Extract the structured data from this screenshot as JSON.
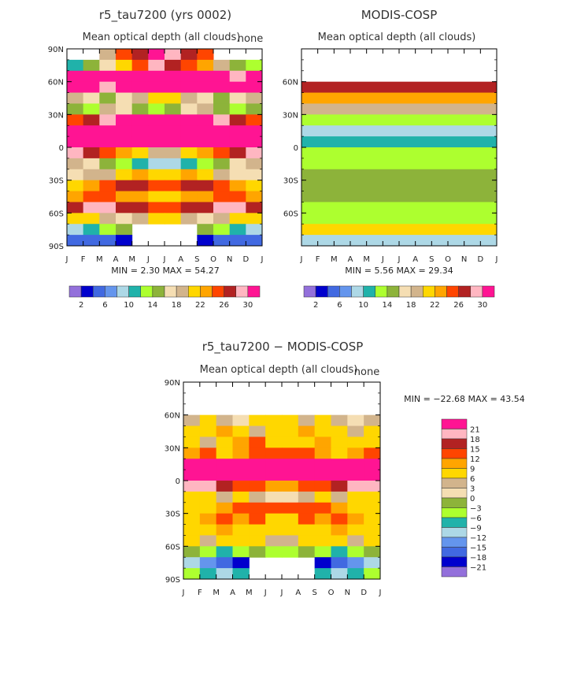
{
  "chart_data": [
    {
      "type": "heatmap",
      "title": "r5_tau7200 (yrs 0002)",
      "subtitle": "Mean optical depth (all clouds)",
      "corner_label": "none",
      "x_ticks": [
        "J",
        "F",
        "M",
        "A",
        "M",
        "J",
        "J",
        "A",
        "S",
        "O",
        "N",
        "D",
        "J"
      ],
      "y_ticks": [
        "90N",
        "60N",
        "30N",
        "0",
        "30S",
        "60S",
        "90S"
      ],
      "y_tick_visible": [
        true,
        true,
        true,
        true,
        true,
        true,
        true
      ],
      "stats_text": "MIN =    2.30  MAX =   54.27",
      "min": 2.3,
      "max": 54.27,
      "legend_labels": [
        "2",
        "6",
        "10",
        "14",
        "18",
        "22",
        "26",
        "30"
      ],
      "legend_colors": [
        "#9370DB",
        "#0000CD",
        "#4169E1",
        "#6495ED",
        "#ADD8E6",
        "#20B2AA",
        "#ADFF2F",
        "#8DB33A",
        "#F5DEB3",
        "#D2B48C",
        "#FFD700",
        "#FFA500",
        "#FF4500",
        "#B22222",
        "#FFB6C1",
        "#FF1493"
      ],
      "latitudes": [
        85,
        75,
        65,
        55,
        45,
        35,
        25,
        15,
        5,
        -5,
        -15,
        -25,
        -35,
        -45,
        -55,
        -65,
        -75,
        -85
      ],
      "months": [
        "Jan",
        "Feb",
        "Mar",
        "Apr",
        "May",
        "Jun",
        "Jul",
        "Aug",
        "Sep",
        "Oct",
        "Nov",
        "Dec"
      ],
      "values": [
        [
          null,
          null,
          18,
          24,
          26,
          30,
          28,
          26,
          24,
          null,
          null,
          null
        ],
        [
          10,
          14,
          16,
          20,
          24,
          28,
          26,
          24,
          22,
          18,
          14,
          12
        ],
        [
          30,
          30,
          32,
          34,
          36,
          36,
          34,
          32,
          30,
          30,
          28,
          30
        ],
        [
          32,
          30,
          28,
          30,
          34,
          36,
          36,
          34,
          32,
          30,
          30,
          32
        ],
        [
          18,
          16,
          14,
          16,
          18,
          20,
          20,
          18,
          16,
          14,
          16,
          18
        ],
        [
          14,
          12,
          18,
          16,
          14,
          12,
          14,
          16,
          18,
          14,
          12,
          14
        ],
        [
          24,
          26,
          28,
          30,
          32,
          34,
          34,
          32,
          30,
          28,
          26,
          24
        ],
        [
          32,
          34,
          36,
          38,
          40,
          42,
          42,
          40,
          38,
          36,
          34,
          32
        ],
        [
          34,
          36,
          38,
          40,
          44,
          46,
          46,
          44,
          40,
          38,
          36,
          34
        ],
        [
          28,
          26,
          24,
          22,
          20,
          18,
          18,
          20,
          22,
          24,
          26,
          28
        ],
        [
          18,
          16,
          14,
          12,
          10,
          8,
          8,
          10,
          12,
          14,
          16,
          18
        ],
        [
          16,
          18,
          18,
          20,
          22,
          20,
          20,
          22,
          20,
          18,
          16,
          16
        ],
        [
          20,
          22,
          24,
          26,
          26,
          24,
          24,
          26,
          26,
          24,
          22,
          20
        ],
        [
          22,
          24,
          24,
          22,
          22,
          20,
          20,
          22,
          22,
          24,
          24,
          22
        ],
        [
          26,
          28,
          28,
          26,
          26,
          24,
          24,
          26,
          26,
          28,
          28,
          26
        ],
        [
          20,
          20,
          18,
          16,
          18,
          20,
          20,
          18,
          16,
          18,
          20,
          20
        ],
        [
          8,
          10,
          12,
          14,
          null,
          null,
          null,
          null,
          14,
          12,
          10,
          8
        ],
        [
          4,
          4,
          4,
          2,
          null,
          null,
          null,
          null,
          2,
          4,
          4,
          4
        ]
      ]
    },
    {
      "type": "heatmap",
      "title": "MODIS-COSP",
      "subtitle": "Mean optical depth (all clouds)",
      "x_ticks": [
        "J",
        "F",
        "M",
        "A",
        "M",
        "J",
        "J",
        "A",
        "S",
        "O",
        "N",
        "D",
        "J"
      ],
      "y_ticks": [
        "90N",
        "60N",
        "30N",
        "0",
        "30S",
        "60S",
        "90S"
      ],
      "y_tick_visible": [
        false,
        true,
        true,
        true,
        true,
        true,
        false
      ],
      "stats_text": "MIN =    5.56  MAX =   29.34",
      "min": 5.56,
      "max": 29.34,
      "legend_labels": [
        "2",
        "6",
        "10",
        "14",
        "18",
        "22",
        "26",
        "30"
      ],
      "legend_colors": [
        "#9370DB",
        "#0000CD",
        "#4169E1",
        "#6495ED",
        "#ADD8E6",
        "#20B2AA",
        "#ADFF2F",
        "#8DB33A",
        "#F5DEB3",
        "#D2B48C",
        "#FFD700",
        "#FFA500",
        "#FF4500",
        "#B22222",
        "#FFB6C1",
        "#FF1493"
      ],
      "latitudes": [
        85,
        75,
        65,
        55,
        45,
        35,
        25,
        15,
        5,
        -5,
        -15,
        -25,
        -35,
        -45,
        -55,
        -65,
        -75,
        -85
      ],
      "zonal_values": [
        null,
        null,
        null,
        27,
        22,
        19,
        12,
        9,
        10,
        13,
        12,
        14,
        14,
        14,
        13,
        13,
        20,
        8
      ]
    },
    {
      "type": "heatmap",
      "title": "r5_tau7200 − MODIS-COSP",
      "subtitle": "Mean optical depth (all clouds)",
      "corner_label": "none",
      "x_ticks": [
        "J",
        "F",
        "M",
        "A",
        "M",
        "J",
        "J",
        "A",
        "S",
        "O",
        "N",
        "D",
        "J"
      ],
      "y_ticks": [
        "90N",
        "60N",
        "30N",
        "0",
        "30S",
        "60S",
        "90S"
      ],
      "y_tick_visible": [
        true,
        true,
        true,
        true,
        true,
        true,
        true
      ],
      "stats_text": "MIN =  −22.68  MAX =   43.54",
      "min": -22.68,
      "max": 43.54,
      "legend_labels": [
        "21",
        "18",
        "15",
        "12",
        "9",
        "6",
        "3",
        "0",
        "−3",
        "−6",
        "−9",
        "−12",
        "−15",
        "−18",
        "−21"
      ],
      "legend_colors": [
        "#FF1493",
        "#FFB6C1",
        "#B22222",
        "#FF4500",
        "#FFA500",
        "#FFD700",
        "#D2B48C",
        "#F5DEB3",
        "#8DB33A",
        "#ADFF2F",
        "#20B2AA",
        "#ADD8E6",
        "#6495ED",
        "#4169E1",
        "#0000CD",
        "#9370DB"
      ],
      "latitudes": [
        85,
        75,
        65,
        55,
        45,
        35,
        25,
        15,
        5,
        -5,
        -15,
        -25,
        -35,
        -45,
        -55,
        -65,
        -75,
        -85
      ],
      "months": [
        "Jan",
        "Feb",
        "Mar",
        "Apr",
        "May",
        "Jun",
        "Jul",
        "Aug",
        "Sep",
        "Oct",
        "Nov",
        "Dec"
      ],
      "values": [
        [
          null,
          null,
          null,
          null,
          null,
          null,
          null,
          null,
          null,
          null,
          null,
          null
        ],
        [
          null,
          null,
          null,
          null,
          null,
          null,
          null,
          null,
          null,
          null,
          null,
          null
        ],
        [
          null,
          null,
          null,
          null,
          null,
          null,
          null,
          null,
          null,
          null,
          null,
          null
        ],
        [
          4,
          6,
          4,
          2,
          6,
          8,
          6,
          4,
          6,
          4,
          2,
          4
        ],
        [
          8,
          6,
          10,
          8,
          4,
          6,
          8,
          10,
          6,
          8,
          4,
          8
        ],
        [
          6,
          4,
          8,
          10,
          12,
          8,
          6,
          8,
          10,
          6,
          8,
          6
        ],
        [
          10,
          12,
          8,
          10,
          12,
          14,
          14,
          12,
          10,
          8,
          10,
          12
        ],
        [
          22,
          24,
          24,
          26,
          28,
          30,
          30,
          28,
          26,
          24,
          22,
          22
        ],
        [
          24,
          26,
          28,
          30,
          34,
          36,
          36,
          34,
          30,
          28,
          26,
          24
        ],
        [
          20,
          18,
          16,
          14,
          12,
          10,
          10,
          12,
          14,
          16,
          18,
          20
        ],
        [
          8,
          6,
          4,
          6,
          3,
          2,
          2,
          3,
          6,
          4,
          6,
          8
        ],
        [
          6,
          8,
          10,
          12,
          14,
          12,
          12,
          14,
          12,
          10,
          8,
          6
        ],
        [
          8,
          10,
          12,
          10,
          12,
          8,
          8,
          12,
          10,
          12,
          10,
          8
        ],
        [
          6,
          8,
          10,
          8,
          6,
          8,
          8,
          6,
          8,
          10,
          8,
          6
        ],
        [
          6,
          4,
          6,
          8,
          6,
          4,
          4,
          6,
          8,
          6,
          4,
          6
        ],
        [
          -3,
          -6,
          -9,
          -6,
          -3,
          -6,
          -6,
          -3,
          -6,
          -9,
          -6,
          -3
        ],
        [
          -12,
          -15,
          -18,
          -21,
          null,
          null,
          null,
          null,
          -21,
          -18,
          -15,
          -12
        ],
        [
          -6,
          -9,
          -12,
          -9,
          null,
          null,
          null,
          null,
          -9,
          -12,
          -9,
          -6
        ]
      ]
    }
  ]
}
